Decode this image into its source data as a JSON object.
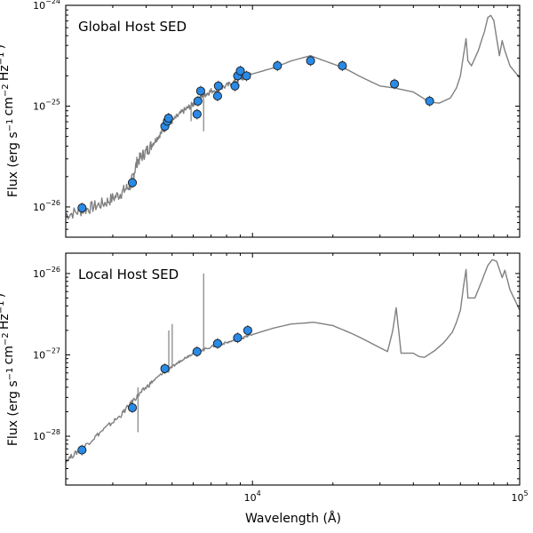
{
  "chart_data": {
    "type": "scatter",
    "xlabel": "Wavelength (Å)",
    "xscale": "log",
    "xlim": [
      2000,
      100000
    ],
    "x_tick_labels": [
      {
        "value": 10000,
        "label": "10^4"
      },
      {
        "value": 100000,
        "label": "10^5"
      }
    ],
    "panels": [
      {
        "title": "Global Host SED",
        "ylabel": "Flux (erg s^-1 cm^-2 Hz^-1)",
        "yscale": "log",
        "ylim_log10": [
          -26.3,
          -24.0
        ],
        "y_tick_labels": [
          {
            "exp": -26,
            "label": "10^-26"
          },
          {
            "exp": -25,
            "label": "10^-25"
          },
          {
            "exp": -24,
            "label": "10^-24"
          }
        ],
        "photometry": {
          "x": [
            2300,
            3550,
            4700,
            4800,
            4850,
            6200,
            6250,
            6400,
            7400,
            7450,
            8600,
            8800,
            9000,
            9500,
            12400,
            16500,
            21700,
            34000,
            46000
          ],
          "log10_flux": [
            -26.01,
            -25.76,
            -25.2,
            -25.15,
            -25.12,
            -25.08,
            -24.95,
            -24.85,
            -24.9,
            -24.8,
            -24.8,
            -24.7,
            -24.65,
            -24.7,
            -24.6,
            -24.55,
            -24.6,
            -24.78,
            -24.95
          ]
        },
        "model": {
          "x": [
            2000,
            2400,
            2800,
            3200,
            3500,
            3700,
            4000,
            4300,
            4600,
            5000,
            5500,
            6000,
            6500,
            7000,
            8000,
            9000,
            10000,
            12000,
            14000,
            16500,
            19000,
            22000,
            25000,
            30000,
            34000,
            40000,
            46000,
            50000,
            55000,
            58000,
            60000,
            62000,
            63000,
            64000,
            66000,
            70000,
            74000,
            76000,
            78000,
            80000,
            84000,
            86000,
            88000,
            92000,
            100000
          ],
          "log10_flux": [
            -26.08,
            -26.02,
            -25.96,
            -25.87,
            -25.78,
            -25.55,
            -25.45,
            -25.35,
            -25.25,
            -25.15,
            -25.05,
            -24.98,
            -24.9,
            -24.85,
            -24.8,
            -24.73,
            -24.68,
            -24.62,
            -24.55,
            -24.5,
            -24.56,
            -24.62,
            -24.7,
            -24.8,
            -24.82,
            -24.86,
            -24.96,
            -24.97,
            -24.92,
            -24.82,
            -24.7,
            -24.45,
            -24.33,
            -24.55,
            -24.6,
            -24.45,
            -24.25,
            -24.12,
            -24.1,
            -24.15,
            -24.5,
            -24.35,
            -24.45,
            -24.6,
            -24.72
          ]
        }
      },
      {
        "title": "Local Host SED",
        "ylabel": "Flux (erg s^-1 cm^-2 Hz^-1)",
        "yscale": "log",
        "ylim_log10": [
          -28.6,
          -25.75
        ],
        "y_tick_labels": [
          {
            "exp": -28,
            "label": "10^-28"
          },
          {
            "exp": -27,
            "label": "10^-27"
          },
          {
            "exp": -26,
            "label": "10^-26"
          }
        ],
        "photometry": {
          "x": [
            2300,
            3550,
            4700,
            6200,
            7400,
            8800,
            9600
          ],
          "log10_flux": [
            -28.17,
            -27.65,
            -27.17,
            -26.96,
            -26.86,
            -26.79,
            -26.7
          ]
        },
        "model": {
          "x": [
            2000,
            2300,
            2700,
            3200,
            3600,
            4000,
            4500,
            5000,
            5500,
            6000,
            7000,
            8000,
            9000,
            10000,
            12000,
            14000,
            17000,
            20000,
            24000,
            28000,
            32000,
            33500,
            34500,
            36000,
            40000,
            42000,
            44000,
            48000,
            52000,
            56000,
            58000,
            60000,
            62000,
            63000,
            64000,
            68000,
            72000,
            76000,
            79000,
            82000,
            86000,
            88000,
            92000,
            100000
          ],
          "log10_flux": [
            -28.3,
            -28.15,
            -27.95,
            -27.75,
            -27.55,
            -27.4,
            -27.25,
            -27.15,
            -27.05,
            -26.98,
            -26.9,
            -26.85,
            -26.8,
            -26.75,
            -26.67,
            -26.62,
            -26.6,
            -26.64,
            -26.75,
            -26.86,
            -26.96,
            -26.7,
            -26.42,
            -26.98,
            -26.98,
            -27.02,
            -27.03,
            -26.95,
            -26.85,
            -26.72,
            -26.6,
            -26.45,
            -26.1,
            -25.95,
            -26.3,
            -26.3,
            -26.1,
            -25.9,
            -25.83,
            -25.85,
            -26.05,
            -25.96,
            -26.2,
            -26.45
          ]
        }
      }
    ]
  }
}
